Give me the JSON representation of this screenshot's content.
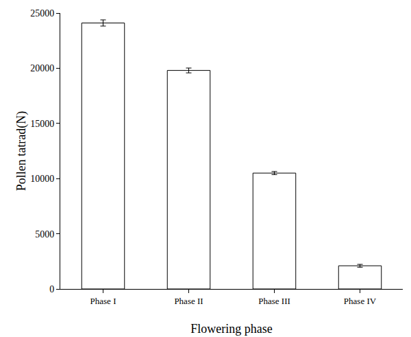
{
  "chart_data": {
    "type": "bar",
    "x_label": "Flowering phase",
    "y_label": "Pollen tatrad(N)",
    "categories": [
      "Phase I",
      "Phase II",
      "Phase III",
      "Phase IV"
    ],
    "values": [
      24100,
      19800,
      10500,
      2100
    ],
    "errors": [
      280,
      220,
      140,
      130
    ],
    "color": "#ffffff",
    "ylim": [
      0,
      25000
    ],
    "yticks": [
      0,
      5000,
      10000,
      15000,
      20000,
      25000
    ],
    "grid": false
  }
}
